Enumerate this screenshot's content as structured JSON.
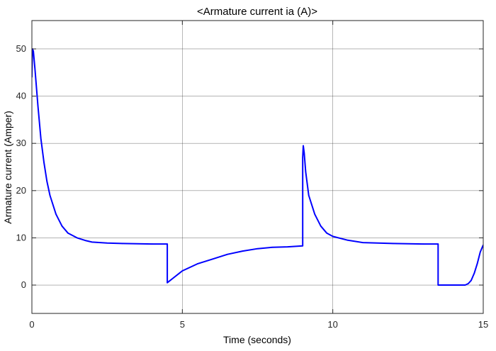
{
  "chart_data": {
    "type": "line",
    "title": "<Armature current ia (A)>",
    "xlabel": "Time (seconds)",
    "ylabel": "Armature current (Amper)",
    "xlim": [
      0,
      15
    ],
    "ylim": [
      -6,
      56
    ],
    "xticks": [
      0,
      5,
      10,
      15
    ],
    "yticks": [
      0,
      10,
      20,
      30,
      40,
      50
    ],
    "grid": true,
    "legend": "none",
    "series": [
      {
        "color": "#0000ff",
        "x": [
          0.0,
          0.02,
          0.05,
          0.1,
          0.2,
          0.3,
          0.4,
          0.5,
          0.6,
          0.8,
          1.0,
          1.2,
          1.5,
          1.8,
          2.0,
          2.5,
          3.0,
          4.0,
          4.5,
          4.5,
          4.7,
          5.0,
          5.5,
          6.0,
          6.5,
          7.0,
          7.5,
          8.0,
          8.5,
          9.0,
          9.0,
          9.02,
          9.05,
          9.1,
          9.2,
          9.4,
          9.6,
          9.8,
          10.0,
          10.5,
          11.0,
          12.0,
          13.0,
          13.5,
          13.5,
          14.0,
          14.4,
          14.5,
          14.6,
          14.7,
          14.8,
          14.9,
          15.0
        ],
        "y": [
          44,
          50,
          49.5,
          46,
          38,
          31,
          26,
          22,
          19,
          15,
          12.5,
          11,
          10,
          9.4,
          9.1,
          8.9,
          8.8,
          8.7,
          8.7,
          0.5,
          1.5,
          3,
          4.5,
          5.5,
          6.5,
          7.2,
          7.7,
          8.0,
          8.1,
          8.3,
          27,
          29.5,
          28,
          24,
          19,
          15,
          12.5,
          11,
          10.3,
          9.5,
          9.0,
          8.8,
          8.7,
          8.7,
          0,
          0,
          0,
          0.3,
          1,
          2.5,
          4.5,
          7,
          8.5
        ]
      }
    ]
  }
}
